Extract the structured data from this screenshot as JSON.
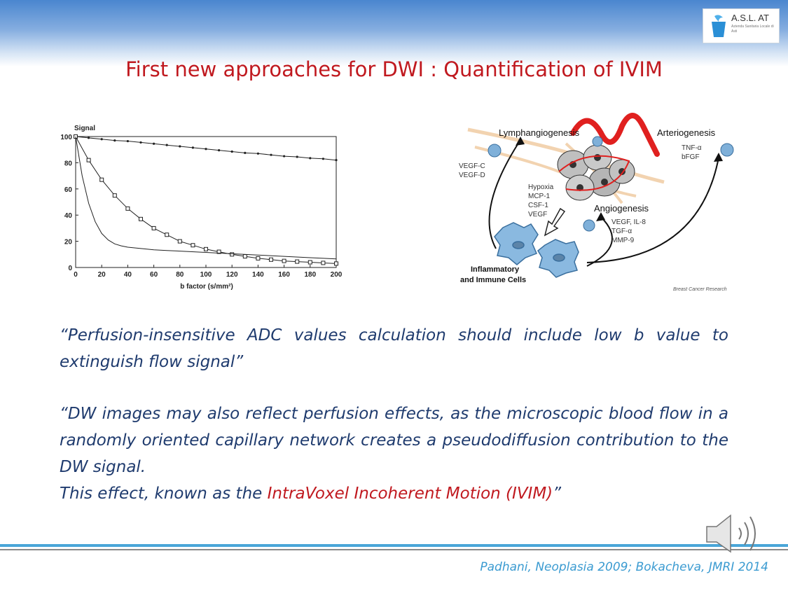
{
  "header": {
    "logo_title": "A.S.L. AT",
    "logo_subtitle": "Azienda Sanitaria Locale di Asti",
    "title": "First new approaches for DWI : Quantification of IVIM"
  },
  "chart_data": {
    "type": "line",
    "ylabel": "Signal",
    "xlabel": "b factor (s/mm²)",
    "xlim": [
      0,
      200
    ],
    "ylim": [
      0,
      100
    ],
    "x_ticks": [
      "0",
      "20",
      "40",
      "60",
      "80",
      "100",
      "120",
      "140",
      "160",
      "180",
      "200"
    ],
    "y_ticks": [
      "0",
      "20",
      "40",
      "60",
      "80",
      "100"
    ],
    "series": [
      {
        "marker": "dot",
        "x": [
          0,
          10,
          20,
          30,
          40,
          50,
          60,
          70,
          80,
          90,
          100,
          110,
          120,
          130,
          140,
          150,
          160,
          170,
          180,
          190,
          200
        ],
        "values": [
          100,
          99,
          98,
          97,
          96.5,
          95.5,
          94.5,
          93.5,
          92.5,
          91.5,
          90.5,
          89.5,
          88.5,
          87.5,
          87,
          86,
          85,
          84.5,
          83.5,
          83,
          82
        ]
      },
      {
        "marker": "square",
        "x": [
          0,
          10,
          20,
          30,
          40,
          50,
          60,
          70,
          80,
          90,
          100,
          110,
          120,
          130,
          140,
          150,
          160,
          170,
          180,
          190,
          200
        ],
        "values": [
          100,
          82,
          67,
          55,
          45,
          37,
          30,
          25,
          20,
          17,
          14,
          12,
          10,
          8.5,
          7,
          6,
          5,
          4.5,
          4,
          3.5,
          3
        ]
      },
      {
        "marker": "none",
        "x": [
          0,
          5,
          10,
          15,
          20,
          25,
          30,
          35,
          40,
          50,
          60,
          70,
          80,
          100,
          120,
          140,
          160,
          180,
          200
        ],
        "values": [
          100,
          70,
          49,
          35,
          26,
          21,
          18,
          16.5,
          15.5,
          14.5,
          13.5,
          13,
          12.5,
          11.5,
          10.5,
          9.5,
          8.5,
          7.5,
          6.5
        ]
      }
    ]
  },
  "figure": {
    "lymphangiogenesis": "Lymphangiogenesis",
    "arteriogenesis": "Arteriogenesis",
    "angiogenesis": "Angiogenesis",
    "vegf_c": "VEGF-C",
    "vegf_d": "VEGF-D",
    "tnf": "TNF-α",
    "bfgf": "bFGF",
    "hypoxia": "Hypoxia",
    "mcp1": "MCP-1",
    "csf1": "CSF-1",
    "vegf": "VEGF",
    "vegf_il8": "VEGF, IL-8",
    "tgf": "TGF-α",
    "mmp9": "MMP-9",
    "inflammatory": "Inflammatory",
    "immune_cells": "and Immune Cells",
    "source": "Breast Cancer Research"
  },
  "quote1": "“Perfusion-insensitive ADC values calculation should include low b value to extinguish flow signal”",
  "quote2": {
    "part1": "“DW images may also reflect perfusion effects, as the microscopic blood flow in a randomly oriented capillary network creates a pseudodiffusion contribution to the DW signal.",
    "part2": "This effect, known as the ",
    "highlight": "IntraVoxel Incoherent Motion (IVIM)",
    "part3": "”"
  },
  "footer": {
    "citation": "Padhani, Neoplasia 2009; Bokacheva, JMRI 2014"
  },
  "colors": {
    "title": "#c0191f",
    "body_text": "#1f3b6e",
    "citation": "#3b9bd1",
    "band": "#4a86cf"
  },
  "icons": [
    "asl-logo-icon",
    "speaker-icon"
  ]
}
